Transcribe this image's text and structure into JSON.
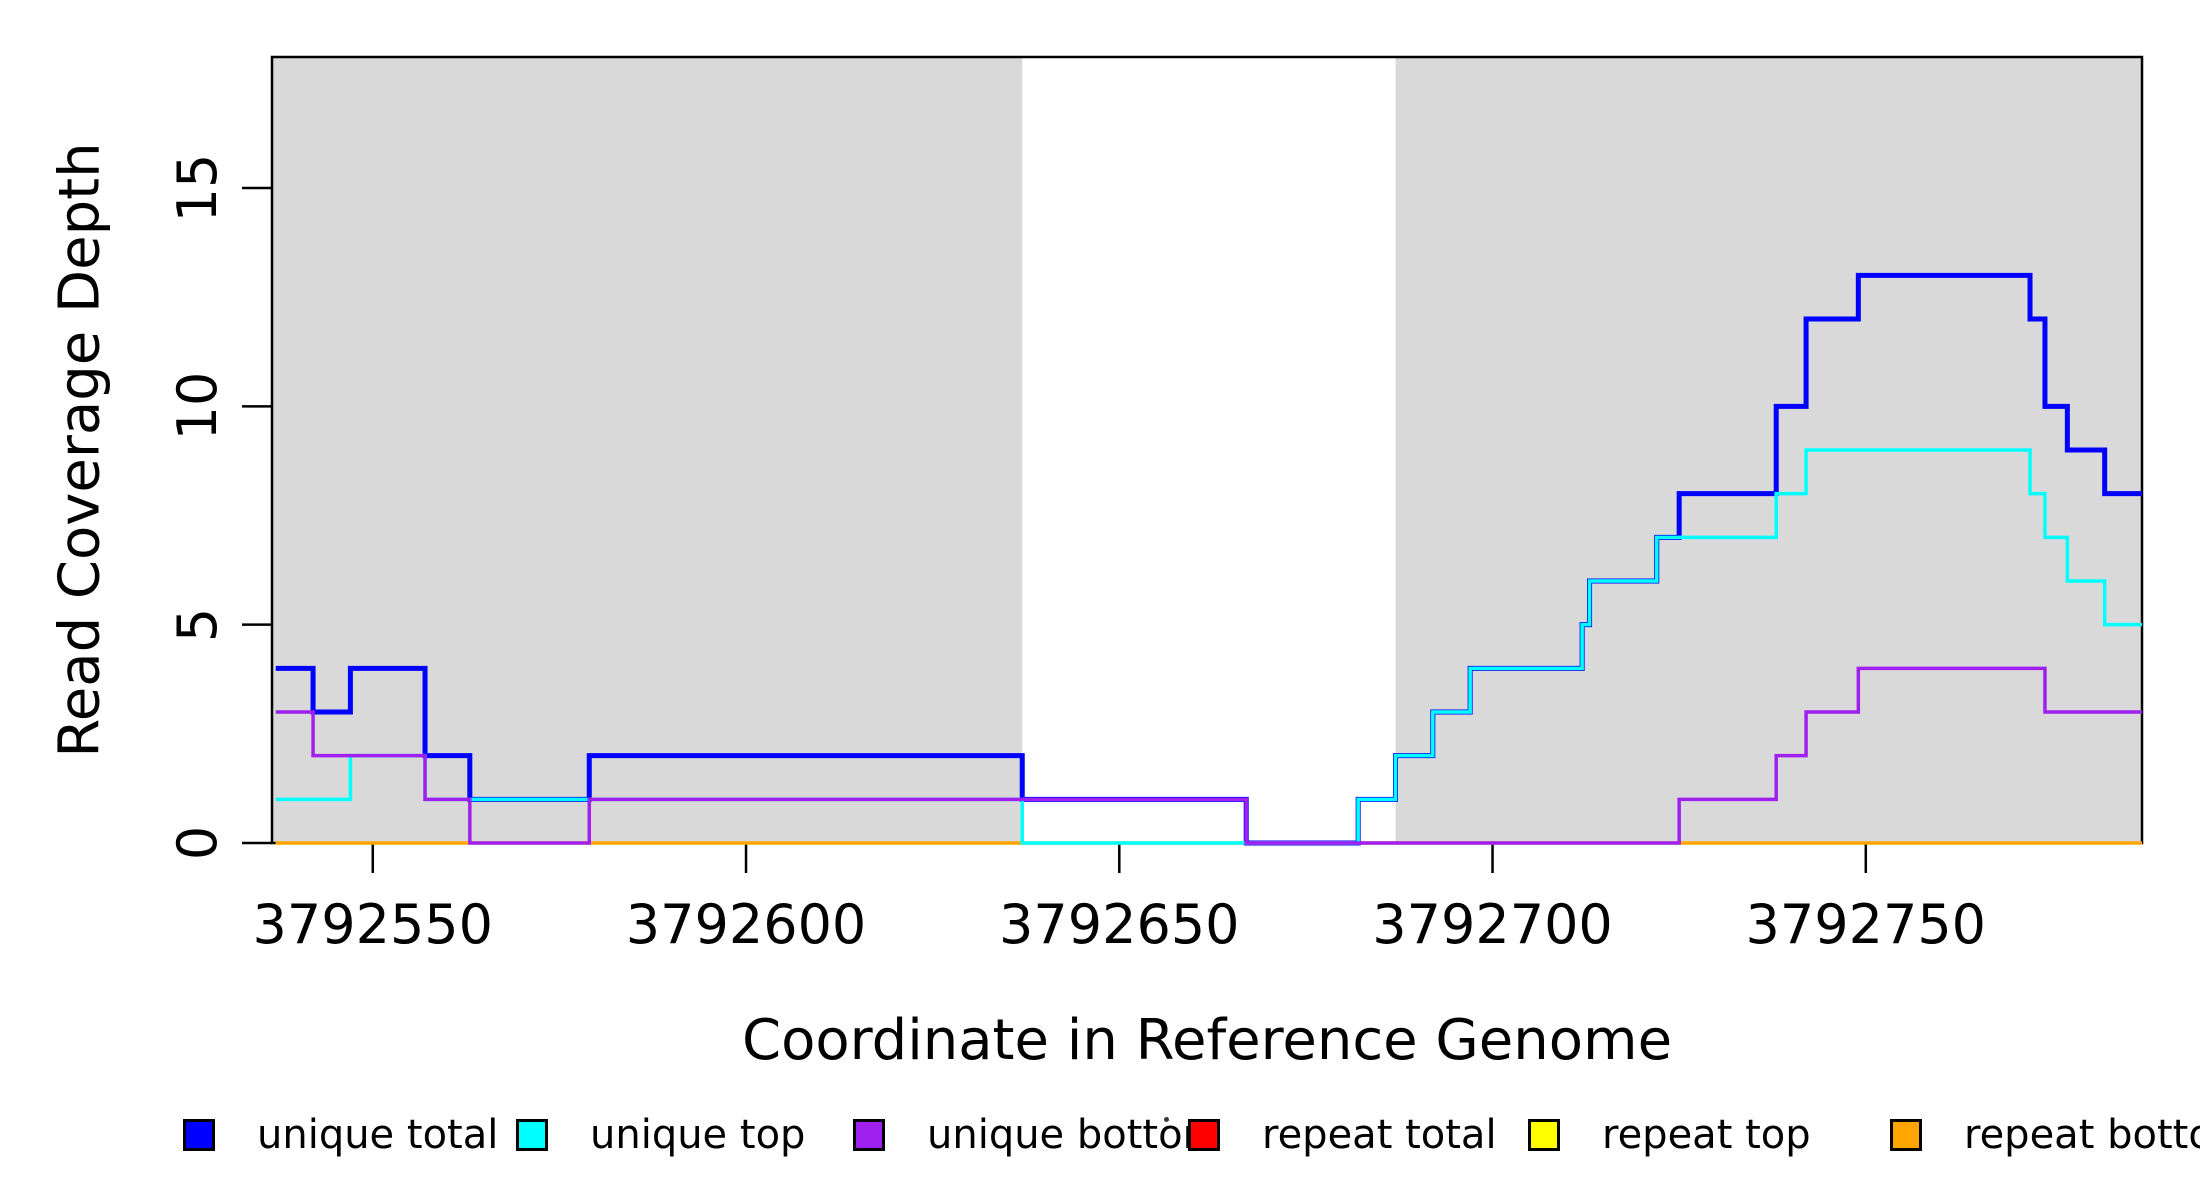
{
  "chart_data": {
    "type": "line",
    "subtype": "step-coverage",
    "title": "",
    "xlabel": "Coordinate in Reference Genome",
    "ylabel": "Read Coverage Depth",
    "xlim": [
      3792536.5,
      3792787
    ],
    "ylim": [
      0,
      18
    ],
    "x_ticks": [
      3792550,
      3792600,
      3792650,
      3792700,
      3792750
    ],
    "y_ticks": [
      0,
      5,
      10,
      15
    ],
    "grid": false,
    "plot_background": "#ffffff",
    "box_color": "#000000",
    "shaded_regions": [
      {
        "name": "left-gray-region",
        "start": 3792536.5,
        "end": 3792637,
        "color": "#d9d9d9"
      },
      {
        "name": "right-gray-region",
        "start": 3792687,
        "end": 3792787,
        "color": "#d9d9d9"
      }
    ],
    "series": [
      {
        "name": "unique total",
        "color": "#0000ff",
        "line_width": 5,
        "segments": [
          [
            3792537,
            3792542,
            4
          ],
          [
            3792542,
            3792547,
            3
          ],
          [
            3792547,
            3792557,
            4
          ],
          [
            3792557,
            3792563,
            2
          ],
          [
            3792563,
            3792579,
            1
          ],
          [
            3792579,
            3792637,
            2
          ],
          [
            3792637,
            3792667,
            1
          ],
          [
            3792667,
            3792682,
            0
          ],
          [
            3792682,
            3792687,
            1
          ],
          [
            3792687,
            3792692,
            2
          ],
          [
            3792692,
            3792697,
            3
          ],
          [
            3792697,
            3792712,
            4
          ],
          [
            3792712,
            3792713,
            5
          ],
          [
            3792713,
            3792722,
            6
          ],
          [
            3792722,
            3792725,
            7
          ],
          [
            3792725,
            3792738,
            8
          ],
          [
            3792738,
            3792742,
            10
          ],
          [
            3792742,
            3792749,
            12
          ],
          [
            3792749,
            3792772,
            13
          ],
          [
            3792772,
            3792774,
            12
          ],
          [
            3792774,
            3792777,
            10
          ],
          [
            3792777,
            3792782,
            9
          ],
          [
            3792782,
            3792787,
            8
          ]
        ]
      },
      {
        "name": "unique top",
        "color": "#00ffff",
        "line_width": 3.5,
        "segments": [
          [
            3792537,
            3792547,
            1
          ],
          [
            3792547,
            3792557,
            2
          ],
          [
            3792557,
            3792637,
            1
          ],
          [
            3792637,
            3792682,
            0
          ],
          [
            3792682,
            3792687,
            1
          ],
          [
            3792687,
            3792692,
            2
          ],
          [
            3792692,
            3792697,
            3
          ],
          [
            3792697,
            3792712,
            4
          ],
          [
            3792712,
            3792713,
            5
          ],
          [
            3792713,
            3792722,
            6
          ],
          [
            3792722,
            3792738,
            7
          ],
          [
            3792738,
            3792742,
            8
          ],
          [
            3792742,
            3792772,
            9
          ],
          [
            3792772,
            3792774,
            8
          ],
          [
            3792774,
            3792777,
            7
          ],
          [
            3792777,
            3792782,
            6
          ],
          [
            3792782,
            3792787,
            5
          ]
        ]
      },
      {
        "name": "unique bottom",
        "color": "#a020f0",
        "line_width": 3.5,
        "segments": [
          [
            3792537,
            3792542,
            3
          ],
          [
            3792542,
            3792557,
            2
          ],
          [
            3792557,
            3792563,
            1
          ],
          [
            3792563,
            3792579,
            0
          ],
          [
            3792579,
            3792667,
            1
          ],
          [
            3792667,
            3792725,
            0
          ],
          [
            3792725,
            3792738,
            1
          ],
          [
            3792738,
            3792742,
            2
          ],
          [
            3792742,
            3792749,
            3
          ],
          [
            3792749,
            3792774,
            4
          ],
          [
            3792774,
            3792787,
            3
          ]
        ]
      },
      {
        "name": "repeat total",
        "color": "#ff0000",
        "line_width": 3,
        "segments": [
          [
            3792537,
            3792787,
            0
          ]
        ]
      },
      {
        "name": "repeat top",
        "color": "#ffff00",
        "line_width": 3,
        "segments": [
          [
            3792537,
            3792787,
            0
          ]
        ]
      },
      {
        "name": "repeat bottom",
        "color": "#ffa500",
        "line_width": 3.5,
        "segments": [
          [
            3792537,
            3792787,
            0
          ]
        ]
      }
    ],
    "legend": {
      "position": "bottom",
      "entries": [
        {
          "label": "unique total",
          "color": "#0000ff"
        },
        {
          "label": "unique top",
          "color": "#00ffff"
        },
        {
          "label": "unique bottom",
          "color": "#a020f0"
        },
        {
          "label": "repeat total",
          "color": "#ff0000"
        },
        {
          "label": "repeat top",
          "color": "#ffff00"
        },
        {
          "label": "repeat bottom",
          "color": "#ffa500"
        }
      ]
    }
  }
}
